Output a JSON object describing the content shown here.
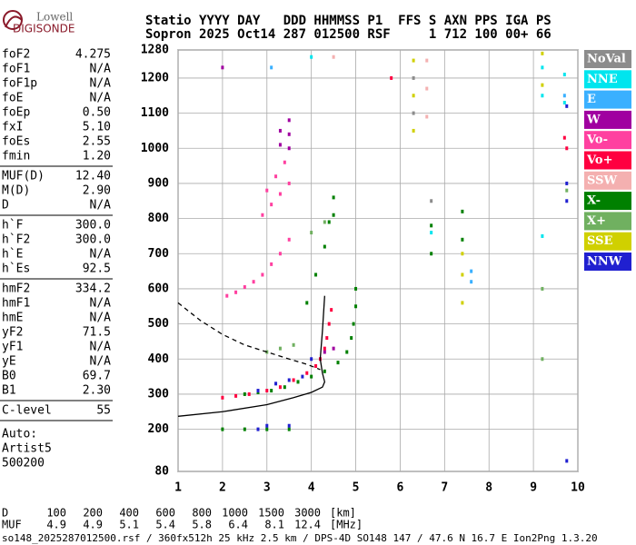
{
  "logo": {
    "top": "Lowell",
    "bottom": "DIGISONDE"
  },
  "header": {
    "line1": "Statio YYYY DAY   DDD HHMMSS P1  FFS S AXN PPS IGA PS",
    "line2": "Sopron 2025 Oct14 287 012500 RSF     1 712 100 00+ 66"
  },
  "param_groups": [
    [
      {
        "label": "foF2",
        "value": "4.275"
      },
      {
        "label": "foF1",
        "value": "N/A"
      },
      {
        "label": "foF1p",
        "value": "N/A"
      },
      {
        "label": "foE",
        "value": "N/A"
      },
      {
        "label": "foEp",
        "value": "0.50"
      },
      {
        "label": "fxI",
        "value": "5.10"
      },
      {
        "label": "foEs",
        "value": "2.55"
      },
      {
        "label": "fmin",
        "value": "1.20"
      }
    ],
    [
      {
        "label": "MUF(D)",
        "value": "12.40"
      },
      {
        "label": "M(D)",
        "value": "2.90"
      },
      {
        "label": "D",
        "value": "N/A"
      }
    ],
    [
      {
        "label": "h`F",
        "value": "300.0"
      },
      {
        "label": "h`F2",
        "value": "300.0"
      },
      {
        "label": "h`E",
        "value": "N/A"
      },
      {
        "label": "h`Es",
        "value": "92.5"
      }
    ],
    [
      {
        "label": "hmF2",
        "value": "334.2"
      },
      {
        "label": "hmF1",
        "value": "N/A"
      },
      {
        "label": "hmE",
        "value": "N/A"
      },
      {
        "label": "yF2",
        "value": "71.5"
      },
      {
        "label": "yF1",
        "value": "N/A"
      },
      {
        "label": "yE",
        "value": "N/A"
      },
      {
        "label": "B0",
        "value": "69.7"
      },
      {
        "label": "B1",
        "value": "2.30"
      }
    ],
    [
      {
        "label": "C-level",
        "value": "55"
      }
    ]
  ],
  "notes": [
    "Auto:",
    "Artist5",
    "500200"
  ],
  "chart_data": {
    "type": "scatter",
    "xlim": [
      1,
      10
    ],
    "xticks": [
      1,
      2,
      3,
      4,
      5,
      6,
      7,
      8,
      9,
      10
    ],
    "ylim": [
      80,
      1280
    ],
    "yticks": [
      80,
      200,
      300,
      400,
      500,
      600,
      700,
      800,
      900,
      1000,
      1100,
      1200,
      1280
    ],
    "grid": true,
    "series": [
      {
        "name": "NoVal",
        "color": "#8c8c8c",
        "x": [
          6.3,
          6.3,
          6.7
        ],
        "values": [
          1200,
          1100,
          850
        ]
      },
      {
        "name": "NNE",
        "color": "#00e5ee",
        "x": [
          9.2,
          9.2,
          9.2,
          9.7,
          9.7,
          4.0,
          6.7
        ],
        "values": [
          1230,
          1150,
          750,
          1210,
          1130,
          1260,
          760
        ]
      },
      {
        "name": "E",
        "color": "#3ab0ff",
        "x": [
          7.6,
          7.6,
          9.7,
          3.1
        ],
        "values": [
          650,
          620,
          1150,
          1230
        ]
      },
      {
        "name": "W",
        "color": "#a000a0",
        "x": [
          3.5,
          3.5,
          3.5,
          3.3,
          3.3,
          4.3,
          4.5,
          2.0
        ],
        "values": [
          1000,
          1040,
          1080,
          1050,
          1010,
          420,
          430,
          1230
        ]
      },
      {
        "name": "Vo-",
        "color": "#ff40a0",
        "x": [
          2.1,
          2.3,
          2.5,
          2.7,
          2.9,
          3.1,
          3.3,
          3.5,
          3.0,
          3.2,
          3.4,
          2.9,
          3.1,
          3.3,
          3.5
        ],
        "values": [
          580,
          590,
          605,
          620,
          640,
          670,
          700,
          740,
          880,
          920,
          960,
          810,
          840,
          870,
          900
        ]
      },
      {
        "name": "Vo+",
        "color": "#ff0040",
        "x": [
          2.0,
          2.3,
          2.6,
          3.0,
          3.3,
          3.6,
          3.9,
          4.1,
          4.2,
          4.3,
          4.35,
          4.4,
          4.45,
          5.8,
          9.7,
          9.75
        ],
        "values": [
          290,
          295,
          300,
          310,
          320,
          340,
          360,
          380,
          400,
          430,
          460,
          500,
          540,
          1200,
          1030,
          1000
        ]
      },
      {
        "name": "SSW",
        "color": "#f4b0b0",
        "x": [
          6.6,
          6.6,
          6.6,
          4.5
        ],
        "values": [
          1250,
          1170,
          1090,
          1260
        ]
      },
      {
        "name": "X-",
        "color": "#008000",
        "x": [
          2.5,
          2.8,
          3.1,
          3.4,
          3.7,
          4.0,
          4.3,
          4.6,
          4.8,
          4.9,
          4.95,
          5.0,
          5.0,
          2.0,
          2.5,
          3.0,
          3.5,
          3.9,
          4.1,
          4.3,
          4.5,
          6.7,
          6.7,
          7.4,
          7.4,
          4.4,
          4.5
        ],
        "values": [
          300,
          305,
          310,
          320,
          335,
          350,
          365,
          390,
          420,
          460,
          500,
          550,
          600,
          200,
          200,
          200,
          200,
          560,
          640,
          720,
          860,
          780,
          700,
          820,
          740,
          790,
          810
        ]
      },
      {
        "name": "X+",
        "color": "#70b060",
        "x": [
          3.0,
          3.3,
          3.6,
          9.2,
          9.2,
          9.75,
          4.0,
          4.3
        ],
        "values": [
          420,
          430,
          440,
          600,
          400,
          880,
          760,
          790
        ]
      },
      {
        "name": "SSE",
        "color": "#d0d000",
        "x": [
          6.3,
          6.3,
          6.3,
          7.4,
          7.4,
          7.4,
          9.2,
          9.2
        ],
        "values": [
          1250,
          1150,
          1050,
          700,
          640,
          560,
          1270,
          1180
        ]
      },
      {
        "name": "NNW",
        "color": "#2020d0",
        "x": [
          2.8,
          3.2,
          3.5,
          3.8,
          4.0,
          2.8,
          3.0,
          3.5,
          9.75,
          9.75,
          9.75,
          9.75
        ],
        "values": [
          310,
          330,
          340,
          350,
          400,
          200,
          210,
          210,
          1120,
          900,
          850,
          110
        ]
      }
    ],
    "profile": {
      "x": [
        1.0,
        2.0,
        3.0,
        3.6,
        4.0,
        4.25,
        4.3,
        4.25,
        4.2,
        4.25,
        4.3
      ],
      "values": [
        237,
        250,
        270,
        290,
        305,
        320,
        335,
        360,
        400,
        480,
        580
      ]
    },
    "profile_dashed": {
      "x": [
        1.0,
        1.5,
        2.0,
        2.5,
        3.0,
        3.5,
        3.9,
        4.2
      ],
      "values": [
        560,
        510,
        470,
        440,
        420,
        400,
        385,
        370
      ]
    }
  },
  "muf_table": {
    "d_label": "D",
    "d_values": [
      100,
      200,
      400,
      600,
      800,
      1000,
      1500,
      3000
    ],
    "d_unit": "[km]",
    "muf_label": "MUF",
    "muf_values": [
      4.9,
      4.9,
      5.1,
      5.4,
      5.8,
      6.4,
      8.1,
      12.4
    ],
    "muf_unit": "[MHz]"
  },
  "footer": "so148_2025287012500.rsf / 360fx512h 25 kHz 2.5 km / DPS-4D SO148 147 / 47.6 N 16.7 E Ion2Png 1.3.20"
}
